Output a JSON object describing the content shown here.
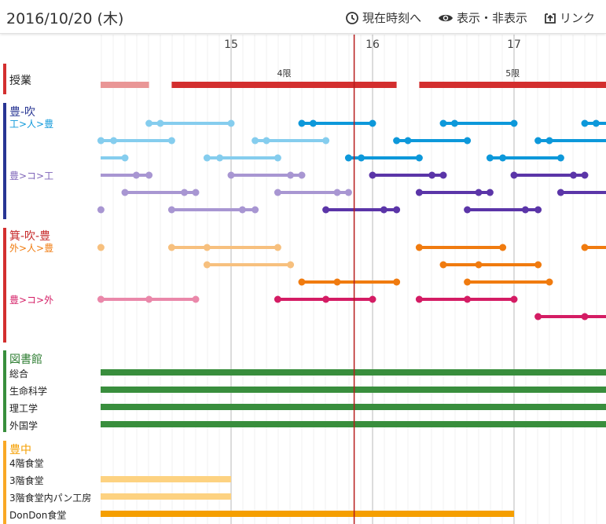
{
  "header": {
    "date": "2016/10/20 (木)",
    "now_label": "現在時刻へ",
    "now_icon": "clock-icon",
    "toggle_label": "表示・非表示",
    "toggle_icon": "eye-icon",
    "link_label": "リンク",
    "link_icon": "share-icon"
  },
  "axis": {
    "start": 14,
    "end": 17.8,
    "now": 15.87,
    "hours": [
      "15",
      "16",
      "17"
    ]
  },
  "colors": {
    "class": "#d32f2f",
    "class_light": "#e99696",
    "blue": "#0d98da",
    "blue_light": "#85cdee",
    "purple": "#5b35a8",
    "purple_light": "#a896d2",
    "orange": "#f07b0f",
    "orange_light": "#f7c07e",
    "pink": "#d41c64",
    "pink_light": "#ea88aa",
    "green": "#398e3d",
    "yellow": "#f59f00",
    "yellow_light": "#fdd281",
    "now_line": "#b71c1c",
    "grid": "#cccccc"
  },
  "sections": [
    {
      "name": "授業",
      "color": "#d32f2f",
      "line": "class"
    },
    {
      "name": "豊-吹",
      "color": "#283593",
      "line": "toyo_sui"
    },
    {
      "name": "箕-吹-豊",
      "color": "#d32f2f",
      "line": "mino_sui_toyo"
    },
    {
      "name": "図書館",
      "color": "#388e3c",
      "line": "library"
    },
    {
      "name": "豊中",
      "color": "#f9a825",
      "line": "toyonaka"
    }
  ],
  "route_labels": [
    {
      "text": "工>人>豊",
      "color": "#0d98da"
    },
    {
      "text": "豊>コ>工",
      "color": "#7e64b8"
    },
    {
      "text": "外>人>豊",
      "color": "#f07b0f"
    },
    {
      "text": "豊>コ>外",
      "color": "#d41c64"
    }
  ],
  "classes": [
    {
      "start": 14.0,
      "end": 14.42,
      "label": ""
    },
    {
      "start": 14.58,
      "end": 16.17,
      "label": "4限"
    },
    {
      "start": 16.33,
      "end": 17.8,
      "label": "5限"
    }
  ],
  "buses": [
    {
      "row": 0,
      "color": "blue_light",
      "stops": [
        14.42,
        14.5,
        15.0
      ]
    },
    {
      "row": 0,
      "color": "blue",
      "stops": [
        15.5,
        15.58,
        16.0
      ]
    },
    {
      "row": 0,
      "color": "blue",
      "stops": [
        16.5,
        16.58,
        17.0
      ]
    },
    {
      "row": 0,
      "color": "blue",
      "stops": [
        17.5,
        17.58,
        17.67
      ]
    },
    {
      "row": 1,
      "color": "blue_light",
      "stops": [
        14.08,
        14.17,
        14.58
      ]
    },
    {
      "row": 1,
      "color": "blue_light",
      "stops": [
        15.17,
        15.25,
        15.67
      ]
    },
    {
      "row": 1,
      "color": "blue",
      "stops": [
        16.17,
        16.25,
        16.67
      ]
    },
    {
      "row": 1,
      "color": "blue",
      "stops": [
        17.17,
        17.25,
        17.67
      ]
    },
    {
      "row": 2,
      "color": "blue_light",
      "stops": [
        13.9,
        14.25
      ]
    },
    {
      "row": 2,
      "color": "blue_light",
      "stops": [
        14.83,
        14.92,
        15.33
      ]
    },
    {
      "row": 2,
      "color": "blue",
      "stops": [
        15.83,
        15.92,
        16.33
      ]
    },
    {
      "row": 2,
      "color": "blue",
      "stops": [
        16.83,
        16.92,
        17.33
      ]
    },
    {
      "row": 3,
      "color": "purple_light",
      "stops": [
        13.9,
        14.33,
        14.42
      ]
    },
    {
      "row": 3,
      "color": "purple_light",
      "stops": [
        15.0,
        15.42,
        15.5
      ]
    },
    {
      "row": 3,
      "color": "purple",
      "stops": [
        16.0,
        16.42,
        16.5
      ]
    },
    {
      "row": 3,
      "color": "purple",
      "stops": [
        17.0,
        17.42,
        17.5
      ]
    },
    {
      "row": 4,
      "color": "purple_light",
      "stops": [
        14.25,
        14.67,
        14.75
      ]
    },
    {
      "row": 4,
      "color": "purple_light",
      "stops": [
        15.33,
        15.75,
        15.83
      ]
    },
    {
      "row": 4,
      "color": "purple",
      "stops": [
        16.33,
        16.75,
        16.83
      ]
    },
    {
      "row": 4,
      "color": "purple",
      "stops": [
        17.33,
        17.75,
        17.83
      ]
    },
    {
      "row": 5,
      "color": "purple_light",
      "stops": [
        14.0,
        14.08
      ]
    },
    {
      "row": 5,
      "color": "purple_light",
      "stops": [
        14.58,
        15.08,
        15.17
      ]
    },
    {
      "row": 5,
      "color": "purple",
      "stops": [
        15.67,
        16.08,
        16.17
      ]
    },
    {
      "row": 5,
      "color": "purple",
      "stops": [
        16.67,
        17.08,
        17.17
      ]
    },
    {
      "row": 5,
      "color": "purple",
      "stops": [
        17.67
      ]
    },
    {
      "row": 6,
      "color": "orange_light",
      "stops": [
        13.9,
        14.08
      ]
    },
    {
      "row": 6,
      "color": "orange_light",
      "stops": [
        14.58,
        14.83,
        15.33
      ]
    },
    {
      "row": 6,
      "color": "orange",
      "stops": [
        16.33,
        16.92
      ]
    },
    {
      "row": 6,
      "color": "orange",
      "stops": [
        17.5,
        17.9
      ]
    },
    {
      "row": 7,
      "color": "orange_light",
      "stops": [
        14.83,
        15.42
      ]
    },
    {
      "row": 7,
      "color": "orange",
      "stops": [
        16.5,
        16.75,
        17.17
      ]
    },
    {
      "row": 8,
      "color": "orange",
      "stops": [
        15.5,
        15.75,
        16.17
      ]
    },
    {
      "row": 8,
      "color": "orange",
      "stops": [
        16.67,
        17.25
      ]
    },
    {
      "row": 9,
      "color": "pink_light",
      "stops": [
        14.08,
        14.42,
        14.75
      ]
    },
    {
      "row": 9,
      "color": "pink",
      "stops": [
        15.33,
        15.67,
        16.0
      ]
    },
    {
      "row": 9,
      "color": "pink",
      "stops": [
        16.33,
        16.67,
        17.0
      ]
    },
    {
      "row": 10,
      "color": "pink",
      "stops": [
        17.17,
        17.5,
        17.9
      ]
    }
  ],
  "library": [
    {
      "name": "総合",
      "start": 14.0,
      "end": 17.8
    },
    {
      "name": "生命科学",
      "start": 14.0,
      "end": 17.8
    },
    {
      "name": "理工学",
      "start": 14.0,
      "end": 17.8
    },
    {
      "name": "外国学",
      "start": 14.0,
      "end": 17.8
    }
  ],
  "cafeterias": [
    {
      "name": "4階食堂",
      "start": null,
      "end": null,
      "color": "yellow"
    },
    {
      "name": "3階食堂",
      "start": 14.0,
      "end": 15.0,
      "color": "yellow_light"
    },
    {
      "name": "3階食堂内パン工房",
      "start": 14.0,
      "end": 15.0,
      "color": "yellow_light"
    },
    {
      "name": "DonDon食堂",
      "start": 14.0,
      "end": 17.0,
      "color": "yellow"
    }
  ]
}
